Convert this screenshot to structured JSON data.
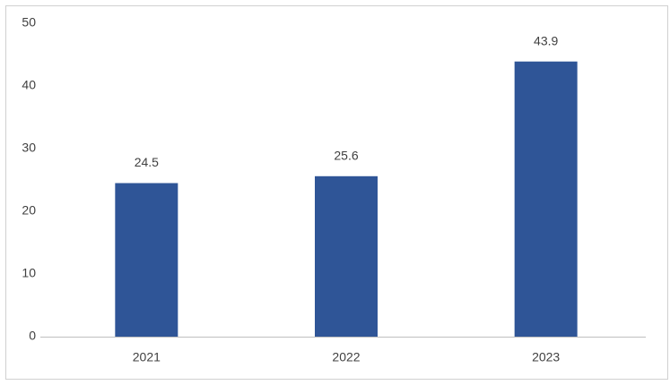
{
  "chart_data": {
    "type": "bar",
    "categories": [
      "2021",
      "2022",
      "2023"
    ],
    "values": [
      24.5,
      25.6,
      43.9
    ],
    "color": "#2f5597",
    "ylim": [
      0,
      50
    ],
    "yticks": [
      0,
      10,
      20,
      30,
      40,
      50
    ],
    "grid": false
  }
}
